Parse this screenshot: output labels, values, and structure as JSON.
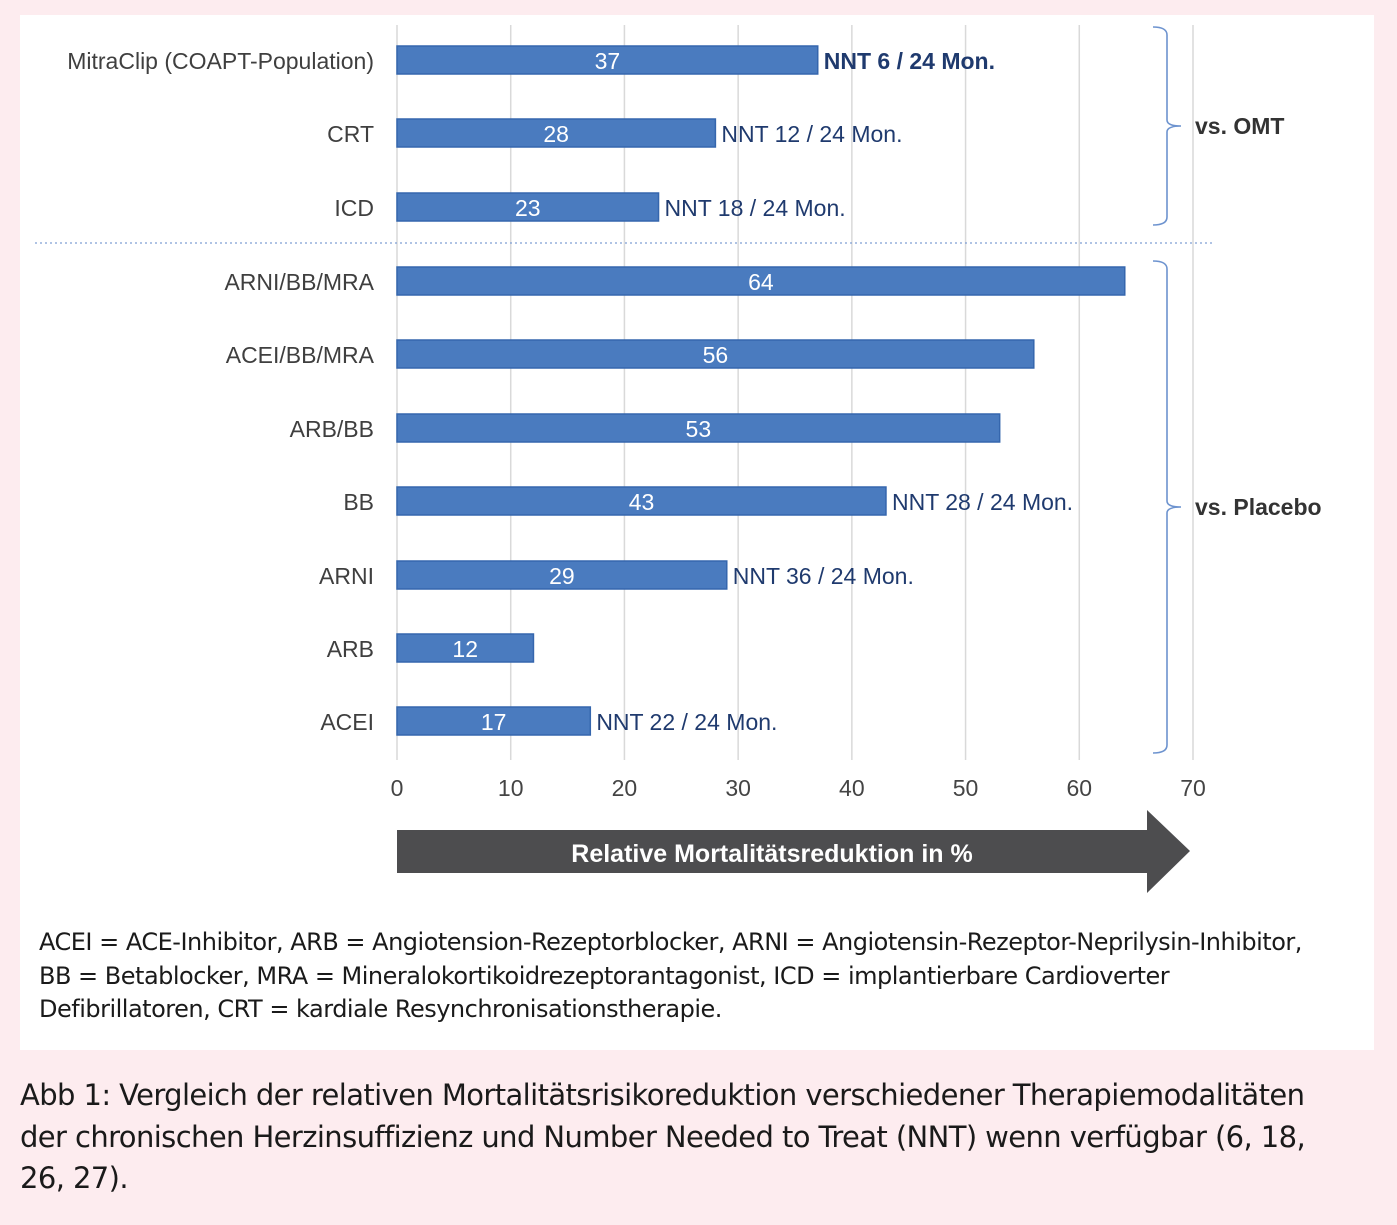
{
  "chart_data": {
    "type": "bar",
    "orientation": "horizontal",
    "categories": [
      "MitraClip (COAPT-Population)",
      "CRT",
      "ICD",
      "ARNI/BB/MRA",
      "ACEI/BB/MRA",
      "ARB/BB",
      "BB",
      "ARNI",
      "ARB",
      "ACEI"
    ],
    "values": [
      37,
      28,
      23,
      64,
      56,
      53,
      43,
      29,
      12,
      17
    ],
    "annotations": [
      "NNT 6 / 24 Mon.",
      "NNT 12 / 24 Mon.",
      "NNT 18 / 24 Mon.",
      "",
      "",
      "",
      "NNT 28 / 24 Mon.",
      "NNT 36 / 24 Mon.",
      "",
      "NNT 22 / 24 Mon."
    ],
    "groups": [
      {
        "label": "vs. OMT",
        "categories": [
          "MitraClip (COAPT-Population)",
          "CRT",
          "ICD"
        ]
      },
      {
        "label": "vs. Placebo",
        "categories": [
          "ARNI/BB/MRA",
          "ACEI/BB/MRA",
          "ARB/BB",
          "BB",
          "ARNI",
          "ARB",
          "ACEI"
        ]
      }
    ],
    "xlabel": "Relative Mortalitätsreduktion in %",
    "xlim": [
      0,
      70
    ],
    "xticks": [
      0,
      10,
      20,
      30,
      40,
      50,
      60,
      70
    ],
    "grid": true,
    "colors": {
      "bar": "#4a7bbf",
      "bar_border": "#3566ad",
      "annotation": "#1f3a6e",
      "category": "#3f3f3f",
      "arrow": "#4d4d4f",
      "brace": "#6d93cf"
    }
  },
  "footnote": "ACEI = ACE-Inhibitor, ARB = Angiotension-Rezeptorblocker, ARNI = Angiotensin-Rezeptor-Neprilysin-Inhibitor, BB = Betablocker, MRA = Mineralokortikoidrezeptorantagonist, ICD = implantierbare Cardioverter Defibrillatoren, CRT = kardiale Resynchronisationstherapie.",
  "caption": "Abb 1: Vergleich der relativen Mortalitätsrisikoreduktion verschiedener Therapiemodalitäten der chronischen Herzinsuffizienz und Number Needed to Treat (NNT) wenn verfügbar (6, 18, 26, 27)."
}
